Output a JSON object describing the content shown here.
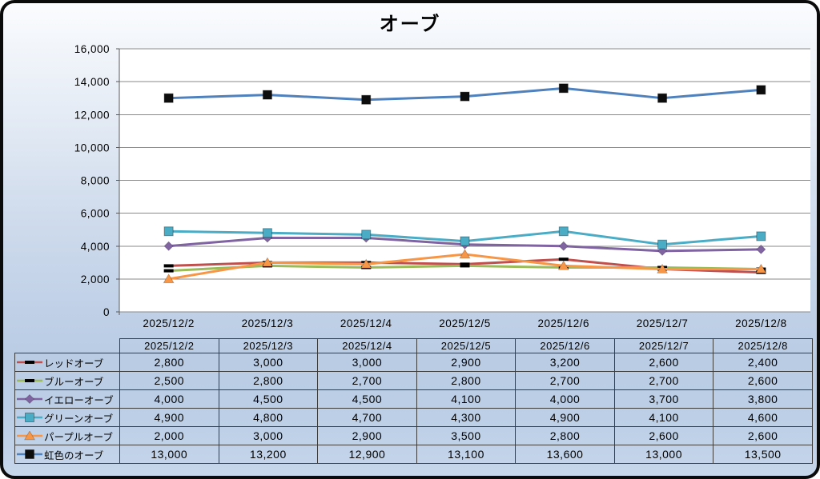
{
  "chart_data": {
    "type": "line",
    "title": "オーブ",
    "xlabel": "",
    "ylabel": "",
    "categories": [
      "2025/12/2",
      "2025/12/3",
      "2025/12/4",
      "2025/12/5",
      "2025/12/6",
      "2025/12/7",
      "2025/12/8"
    ],
    "series": [
      {
        "name": "レッドオーブ",
        "color": "#C0504D",
        "marker": "dash",
        "marker_color": "#000000",
        "values": [
          2800,
          3000,
          3000,
          2900,
          3200,
          2600,
          2400
        ]
      },
      {
        "name": "ブルーオーブ",
        "color": "#9BBB59",
        "marker": "dash",
        "marker_color": "#000000",
        "values": [
          2500,
          2800,
          2700,
          2800,
          2700,
          2700,
          2600
        ]
      },
      {
        "name": "イエローオーブ",
        "color": "#8064A2",
        "marker": "diamond",
        "marker_color": "#8064A2",
        "values": [
          4000,
          4500,
          4500,
          4100,
          4000,
          3700,
          3800
        ]
      },
      {
        "name": "グリーンオーブ",
        "color": "#4BACC6",
        "marker": "square",
        "marker_color": "#4BACC6",
        "values": [
          4900,
          4800,
          4700,
          4300,
          4900,
          4100,
          4600
        ]
      },
      {
        "name": "パープルオーブ",
        "color": "#F79646",
        "marker": "triangle",
        "marker_color": "#F79646",
        "values": [
          2000,
          3000,
          2900,
          3500,
          2800,
          2600,
          2600
        ]
      },
      {
        "name": "虹色のオーブ",
        "color": "#4F81BD",
        "marker": "square",
        "marker_color": "#0d0d0d",
        "values": [
          13000,
          13200,
          12900,
          13100,
          13600,
          13000,
          13500
        ]
      }
    ],
    "ylim": [
      0,
      16000
    ],
    "ytick_step": 2000,
    "ytick_labels": [
      "0",
      "2,000",
      "4,000",
      "6,000",
      "8,000",
      "10,000",
      "12,000",
      "14,000",
      "16,000"
    ],
    "grid": true,
    "legend_position": "table-left"
  },
  "table": {
    "header": [
      "",
      "2025/12/2",
      "2025/12/3",
      "2025/12/4",
      "2025/12/5",
      "2025/12/6",
      "2025/12/7",
      "2025/12/8"
    ],
    "rows": [
      {
        "label": "レッドオーブ",
        "values": [
          "2,800",
          "3,000",
          "3,000",
          "2,900",
          "3,200",
          "2,600",
          "2,400"
        ]
      },
      {
        "label": "ブルーオーブ",
        "values": [
          "2,500",
          "2,800",
          "2,700",
          "2,800",
          "2,700",
          "2,700",
          "2,600"
        ]
      },
      {
        "label": "イエローオーブ",
        "values": [
          "4,000",
          "4,500",
          "4,500",
          "4,100",
          "4,000",
          "3,700",
          "3,800"
        ]
      },
      {
        "label": "グリーンオーブ",
        "values": [
          "4,900",
          "4,800",
          "4,700",
          "4,300",
          "4,900",
          "4,100",
          "4,600"
        ]
      },
      {
        "label": "パープルオーブ",
        "values": [
          "2,000",
          "3,000",
          "2,900",
          "3,500",
          "2,800",
          "2,600",
          "2,600"
        ]
      },
      {
        "label": "虹色のオーブ",
        "values": [
          "13,000",
          "13,200",
          "12,900",
          "13,100",
          "13,600",
          "13,000",
          "13,500"
        ]
      }
    ]
  },
  "colors": {
    "plot_background": "#FFFFFF",
    "gridline": "#8a8a8a",
    "axis_line": "#595959",
    "table_border": "#3d3d3d",
    "frame_border": "#0b0b0b"
  }
}
